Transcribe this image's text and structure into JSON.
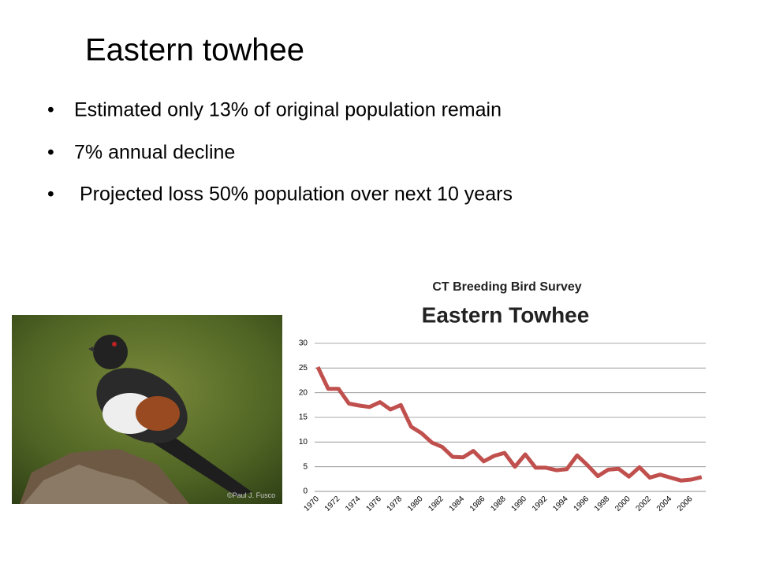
{
  "slide": {
    "title": "Eastern towhee",
    "bullets": [
      "Estimated only 13% of original population remain",
      "7% annual decline",
      "Projected loss 50% population over next 10 years"
    ],
    "photo_credit": "©Paul J. Fusco"
  },
  "chart_data": {
    "type": "line",
    "title": "CT Breeding Bird Survey",
    "subtitle": "Eastern Towhee",
    "categories": [
      "1970",
      null,
      "1972",
      null,
      "1974",
      null,
      "1976",
      null,
      "1978",
      null,
      "1980",
      null,
      "1982",
      null,
      "1984",
      null,
      "1986",
      null,
      "1988",
      null,
      "1990",
      null,
      "1992",
      null,
      "1994",
      null,
      "1996",
      null,
      "1998",
      null,
      "2000",
      null,
      "2002",
      null,
      "2004",
      null,
      "2006",
      null
    ],
    "values": [
      25.2,
      20.8,
      20.8,
      17.8,
      17.4,
      17.1,
      18.1,
      16.6,
      17.5,
      13.1,
      11.8,
      9.9,
      9.0,
      7.0,
      6.9,
      8.2,
      6.1,
      7.2,
      7.8,
      5.0,
      7.5,
      4.8,
      4.8,
      4.3,
      4.5,
      7.3,
      5.3,
      3.1,
      4.4,
      4.6,
      3.0,
      4.9,
      2.8,
      3.4,
      2.8,
      2.2,
      2.4,
      2.9
    ],
    "color": "#c0504d",
    "ylim": [
      0,
      30
    ],
    "yticks": [
      0,
      5,
      10,
      15,
      20,
      25,
      30
    ],
    "grid": true
  }
}
